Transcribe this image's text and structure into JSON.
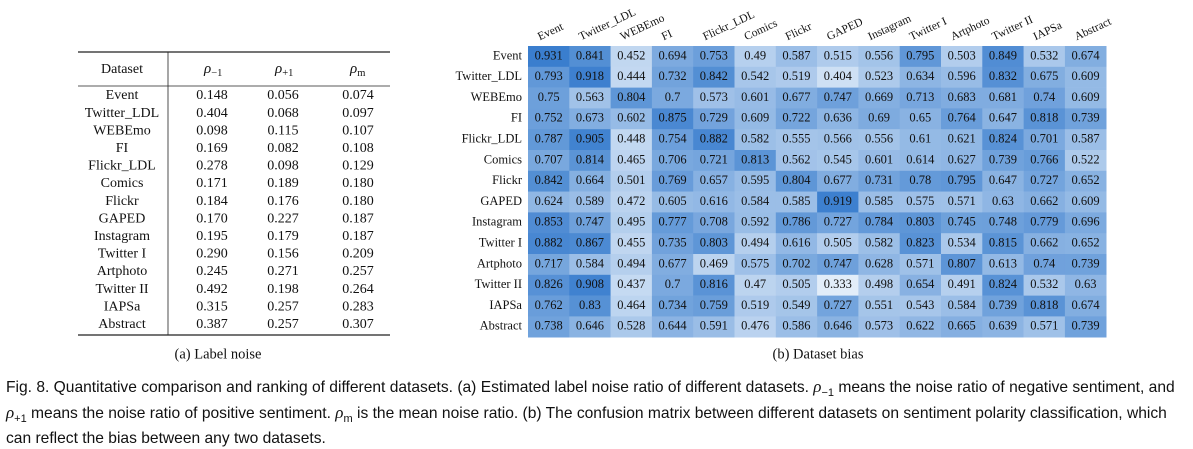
{
  "table": {
    "caption": "(a) Label noise",
    "columns": [
      "Dataset",
      {
        "base": "ρ",
        "sub": "−1"
      },
      {
        "base": "ρ",
        "sub": "+1"
      },
      {
        "base": "ρ",
        "sub": "m"
      }
    ],
    "rows": [
      [
        "Event",
        "0.148",
        "0.056",
        "0.074"
      ],
      [
        "Twitter_LDL",
        "0.404",
        "0.068",
        "0.097"
      ],
      [
        "WEBEmo",
        "0.098",
        "0.115",
        "0.107"
      ],
      [
        "FI",
        "0.169",
        "0.082",
        "0.108"
      ],
      [
        "Flickr_LDL",
        "0.278",
        "0.098",
        "0.129"
      ],
      [
        "Comics",
        "0.171",
        "0.189",
        "0.180"
      ],
      [
        "Flickr",
        "0.184",
        "0.176",
        "0.180"
      ],
      [
        "GAPED",
        "0.170",
        "0.227",
        "0.187"
      ],
      [
        "Instagram",
        "0.195",
        "0.179",
        "0.187"
      ],
      [
        "Twitter I",
        "0.290",
        "0.156",
        "0.209"
      ],
      [
        "Artphoto",
        "0.245",
        "0.271",
        "0.257"
      ],
      [
        "Twitter II",
        "0.492",
        "0.198",
        "0.264"
      ],
      [
        "IAPSa",
        "0.315",
        "0.257",
        "0.283"
      ],
      [
        "Abstract",
        "0.387",
        "0.257",
        "0.307"
      ]
    ]
  },
  "heatmap": {
    "caption": "(b) Dataset bias",
    "columns": [
      "Event",
      "Twitter_LDL",
      "WEBEmo",
      "FI",
      "Flickr_LDL",
      "Comics",
      "Flickr",
      "GAPED",
      "Instagram",
      "Twitter I",
      "Artphoto",
      "Twitter II",
      "IAPSa",
      "Abstract"
    ],
    "rows": [
      "Event",
      "Twitter_LDL",
      "WEBEmo",
      "FI",
      "Flickr_LDL",
      "Comics",
      "Flickr",
      "GAPED",
      "Instagram",
      "Twitter I",
      "Artphoto",
      "Twitter II",
      "IAPSa",
      "Abstract"
    ],
    "values": [
      [
        0.931,
        0.841,
        0.452,
        0.694,
        0.753,
        0.49,
        0.587,
        0.515,
        0.556,
        0.795,
        0.503,
        0.849,
        0.532,
        0.674
      ],
      [
        0.793,
        0.918,
        0.444,
        0.732,
        0.842,
        0.542,
        0.519,
        0.404,
        0.523,
        0.634,
        0.596,
        0.832,
        0.675,
        0.609
      ],
      [
        0.75,
        0.563,
        0.804,
        0.7,
        0.573,
        0.601,
        0.677,
        0.747,
        0.669,
        0.713,
        0.683,
        0.681,
        0.74,
        0.609
      ],
      [
        0.752,
        0.673,
        0.602,
        0.875,
        0.729,
        0.609,
        0.722,
        0.636,
        0.69,
        0.65,
        0.764,
        0.647,
        0.818,
        0.739
      ],
      [
        0.787,
        0.905,
        0.448,
        0.754,
        0.882,
        0.582,
        0.555,
        0.566,
        0.556,
        0.61,
        0.621,
        0.824,
        0.701,
        0.587
      ],
      [
        0.707,
        0.814,
        0.465,
        0.706,
        0.721,
        0.813,
        0.562,
        0.545,
        0.601,
        0.614,
        0.627,
        0.739,
        0.766,
        0.522
      ],
      [
        0.842,
        0.664,
        0.501,
        0.769,
        0.657,
        0.595,
        0.804,
        0.677,
        0.731,
        0.78,
        0.795,
        0.647,
        0.727,
        0.652
      ],
      [
        0.624,
        0.589,
        0.472,
        0.605,
        0.616,
        0.584,
        0.585,
        0.919,
        0.585,
        0.575,
        0.571,
        0.63,
        0.662,
        0.609
      ],
      [
        0.853,
        0.747,
        0.495,
        0.777,
        0.708,
        0.592,
        0.786,
        0.727,
        0.784,
        0.803,
        0.745,
        0.748,
        0.779,
        0.696
      ],
      [
        0.882,
        0.867,
        0.455,
        0.735,
        0.803,
        0.494,
        0.616,
        0.505,
        0.582,
        0.823,
        0.534,
        0.815,
        0.662,
        0.652
      ],
      [
        0.717,
        0.584,
        0.494,
        0.677,
        0.469,
        0.575,
        0.702,
        0.747,
        0.628,
        0.571,
        0.807,
        0.613,
        0.74,
        0.739
      ],
      [
        0.826,
        0.908,
        0.437,
        0.7,
        0.816,
        0.47,
        0.505,
        0.333,
        0.498,
        0.654,
        0.491,
        0.824,
        0.532,
        0.63
      ],
      [
        0.762,
        0.83,
        0.464,
        0.734,
        0.759,
        0.519,
        0.549,
        0.727,
        0.551,
        0.543,
        0.584,
        0.739,
        0.818,
        0.674
      ],
      [
        0.738,
        0.646,
        0.528,
        0.644,
        0.591,
        0.476,
        0.586,
        0.646,
        0.573,
        0.622,
        0.665,
        0.639,
        0.571,
        0.739
      ]
    ]
  },
  "figure_caption": [
    "Fig. 8. Quantitative comparison and ranking of different datasets. (a) Estimated label noise ratio of different datasets. ",
    {
      "base": "ρ",
      "sub": "−1"
    },
    " means the noise ratio of negative sentiment, and ",
    {
      "base": "ρ",
      "sub": "+1"
    },
    " means the noise ratio of positive sentiment. ",
    {
      "base": "ρ",
      "sub": "m"
    },
    " is the mean noise ratio. (b) The confusion matrix between different datasets on sentiment polarity classification, which can reflect the bias between any two datasets."
  ]
}
